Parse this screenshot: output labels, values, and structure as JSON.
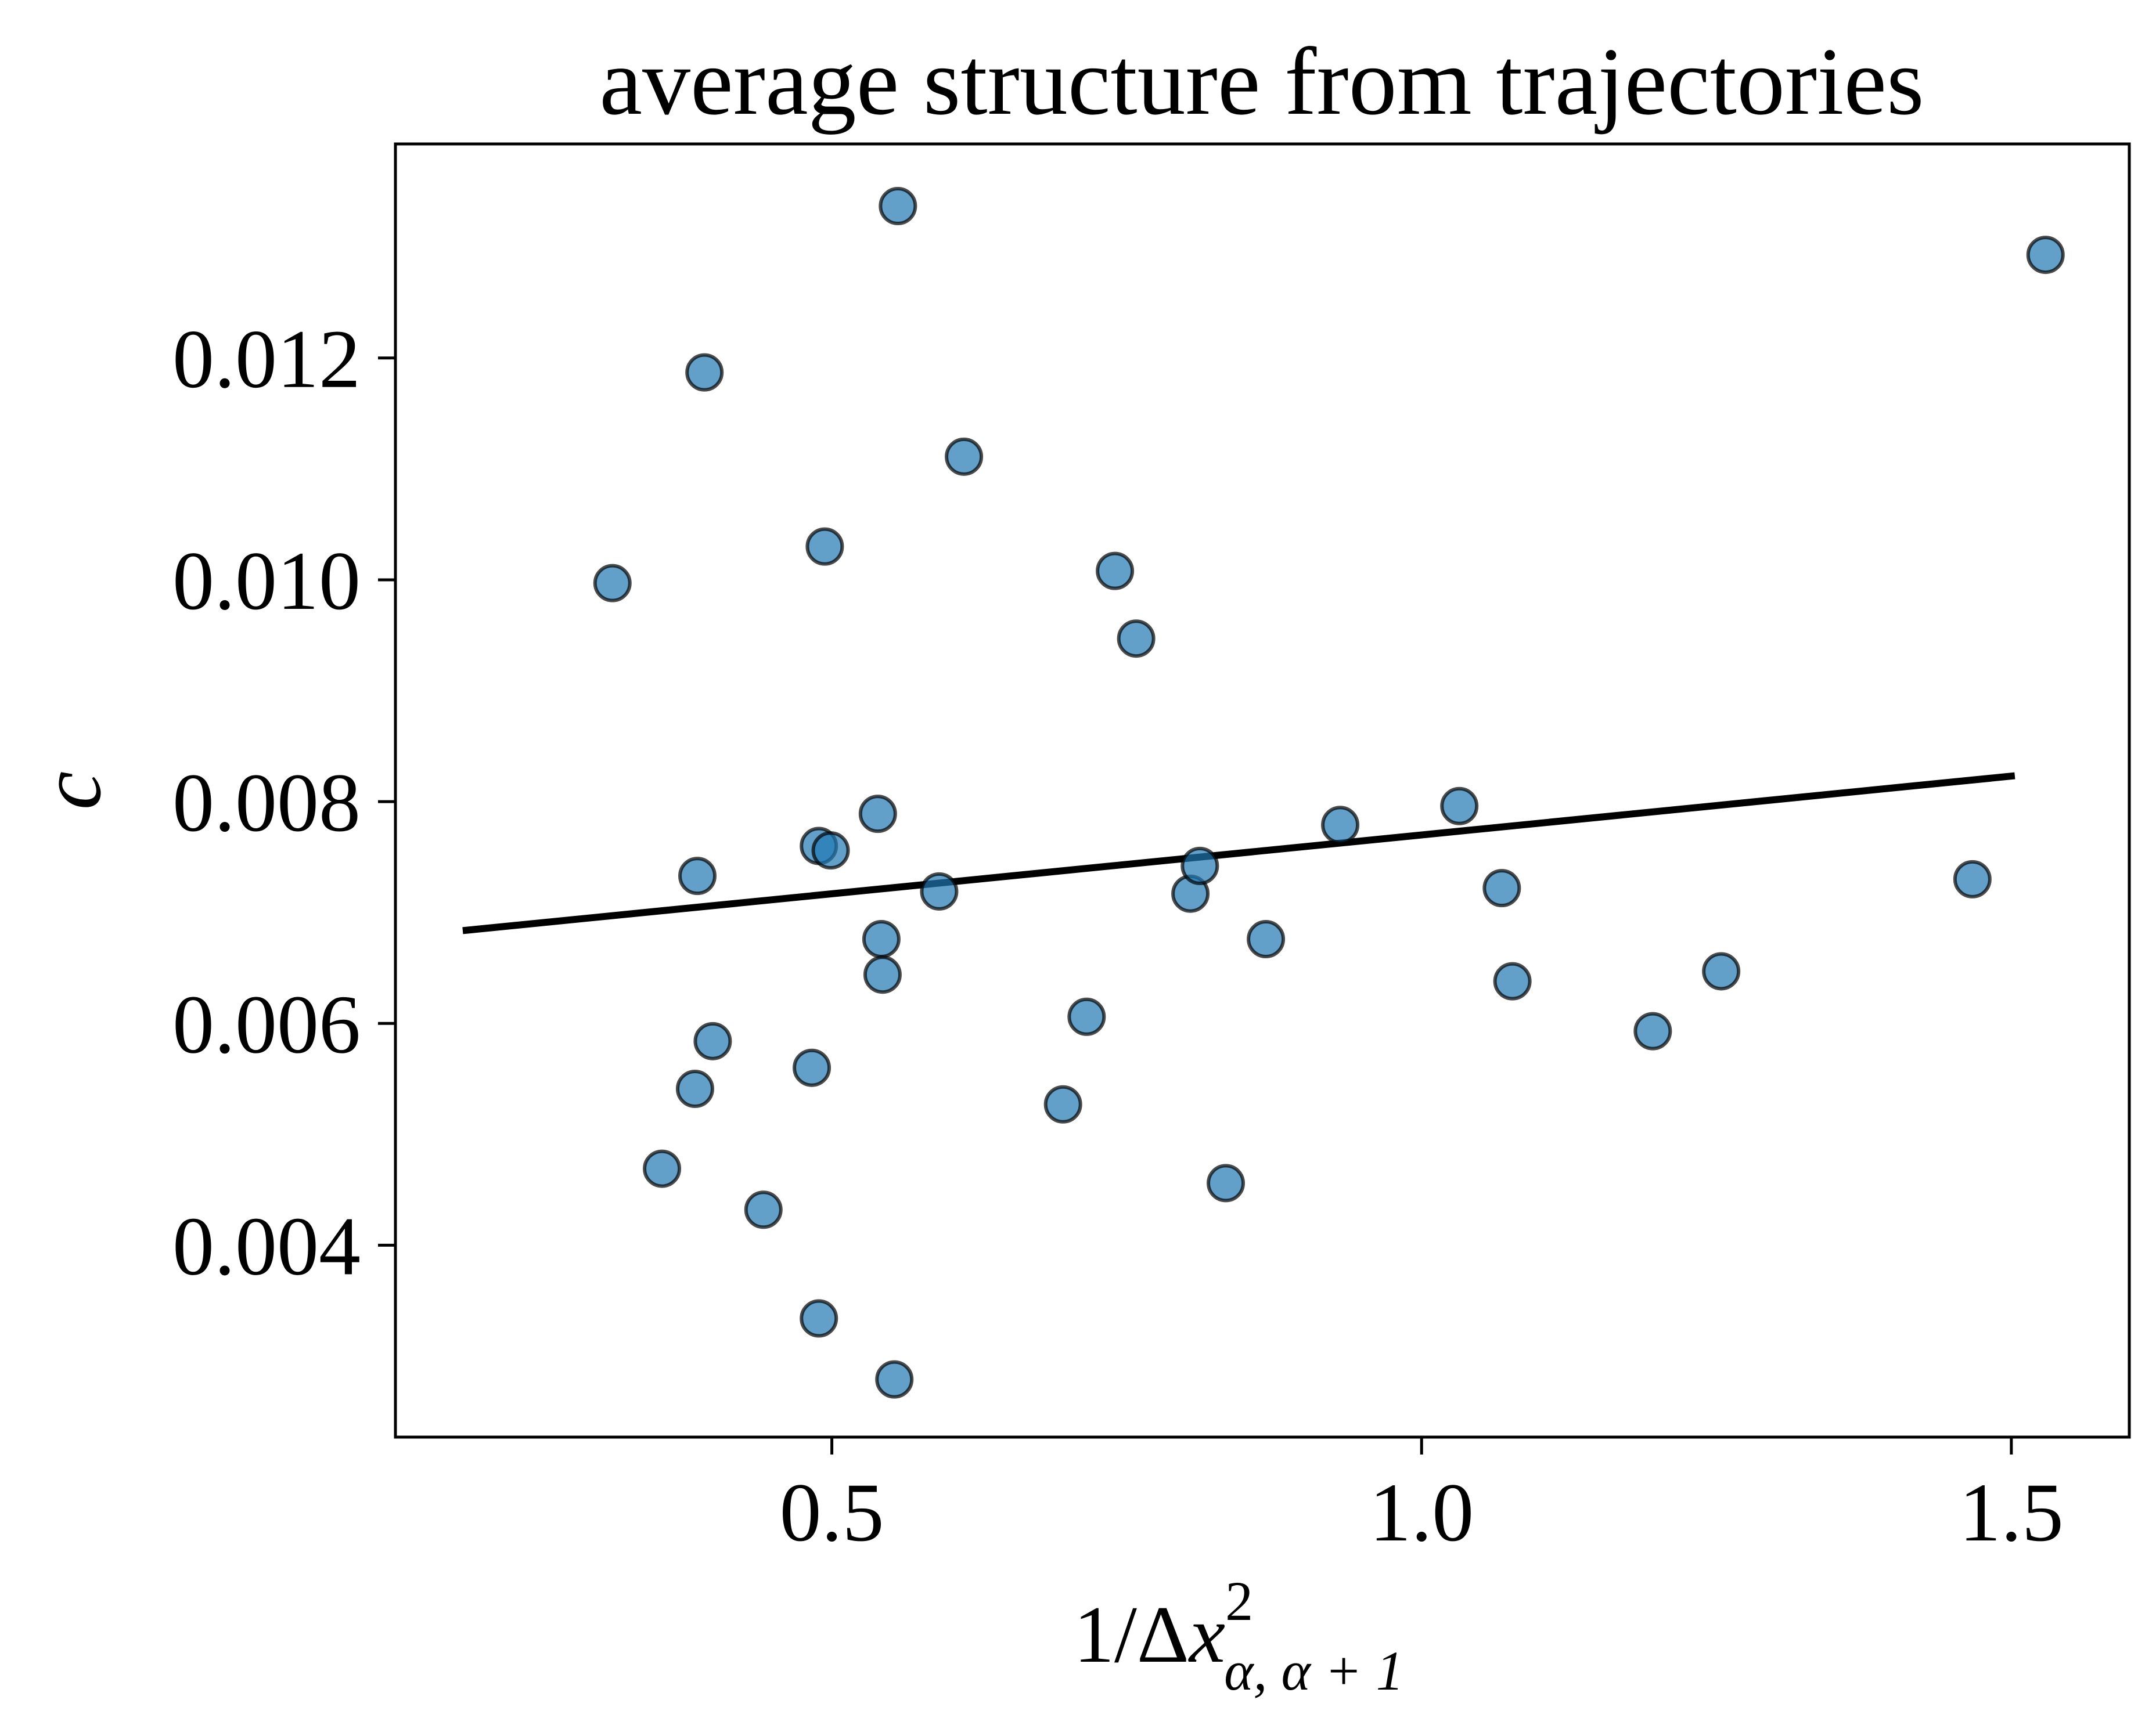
{
  "chart_data": {
    "type": "scatter",
    "title": "average structure from trajectories",
    "xlabel": {
      "prefix": "1/Δ",
      "var": "x",
      "sup": "2",
      "sub": "α, α + 1"
    },
    "ylabel": "c",
    "xlim": [
      0.13,
      1.6
    ],
    "ylim": [
      0.00227,
      0.01393
    ],
    "xticks": [
      {
        "value": 0.5,
        "label": "0.5"
      },
      {
        "value": 1.0,
        "label": "1.0"
      },
      {
        "value": 1.5,
        "label": "1.5"
      }
    ],
    "yticks": [
      {
        "value": 0.004,
        "label": "0.004"
      },
      {
        "value": 0.006,
        "label": "0.006"
      },
      {
        "value": 0.008,
        "label": "0.008"
      },
      {
        "value": 0.01,
        "label": "0.010"
      },
      {
        "value": 0.012,
        "label": "0.012"
      }
    ],
    "grid": false,
    "colors": {
      "marker_fill": "#1f77b4",
      "marker_edge": "#000000",
      "fit_line": "#000000"
    },
    "points": [
      {
        "x": 0.314,
        "y": 0.00997
      },
      {
        "x": 0.356,
        "y": 0.00469
      },
      {
        "x": 0.384,
        "y": 0.00541
      },
      {
        "x": 0.386,
        "y": 0.00733
      },
      {
        "x": 0.392,
        "y": 0.01187
      },
      {
        "x": 0.399,
        "y": 0.00584
      },
      {
        "x": 0.442,
        "y": 0.00432
      },
      {
        "x": 0.483,
        "y": 0.0056
      },
      {
        "x": 0.489,
        "y": 0.0076
      },
      {
        "x": 0.489,
        "y": 0.00334
      },
      {
        "x": 0.494,
        "y": 0.0103
      },
      {
        "x": 0.499,
        "y": 0.00756
      },
      {
        "x": 0.539,
        "y": 0.00789
      },
      {
        "x": 0.542,
        "y": 0.00676
      },
      {
        "x": 0.543,
        "y": 0.00644
      },
      {
        "x": 0.553,
        "y": 0.00279
      },
      {
        "x": 0.556,
        "y": 0.01337
      },
      {
        "x": 0.591,
        "y": 0.00719
      },
      {
        "x": 0.612,
        "y": 0.01111
      },
      {
        "x": 0.696,
        "y": 0.00527
      },
      {
        "x": 0.716,
        "y": 0.00606
      },
      {
        "x": 0.74,
        "y": 0.01008
      },
      {
        "x": 0.758,
        "y": 0.00947
      },
      {
        "x": 0.804,
        "y": 0.00717
      },
      {
        "x": 0.812,
        "y": 0.00742
      },
      {
        "x": 0.834,
        "y": 0.00456
      },
      {
        "x": 0.868,
        "y": 0.00676
      },
      {
        "x": 0.931,
        "y": 0.00779
      },
      {
        "x": 1.032,
        "y": 0.00796
      },
      {
        "x": 1.068,
        "y": 0.00722
      },
      {
        "x": 1.077,
        "y": 0.00638
      },
      {
        "x": 1.196,
        "y": 0.00593
      },
      {
        "x": 1.254,
        "y": 0.00647
      },
      {
        "x": 1.467,
        "y": 0.0073
      },
      {
        "x": 1.529,
        "y": 0.01293
      }
    ],
    "fit_line": {
      "x": [
        0.19,
        1.5
      ],
      "y": [
        0.00684,
        0.00823
      ]
    }
  }
}
